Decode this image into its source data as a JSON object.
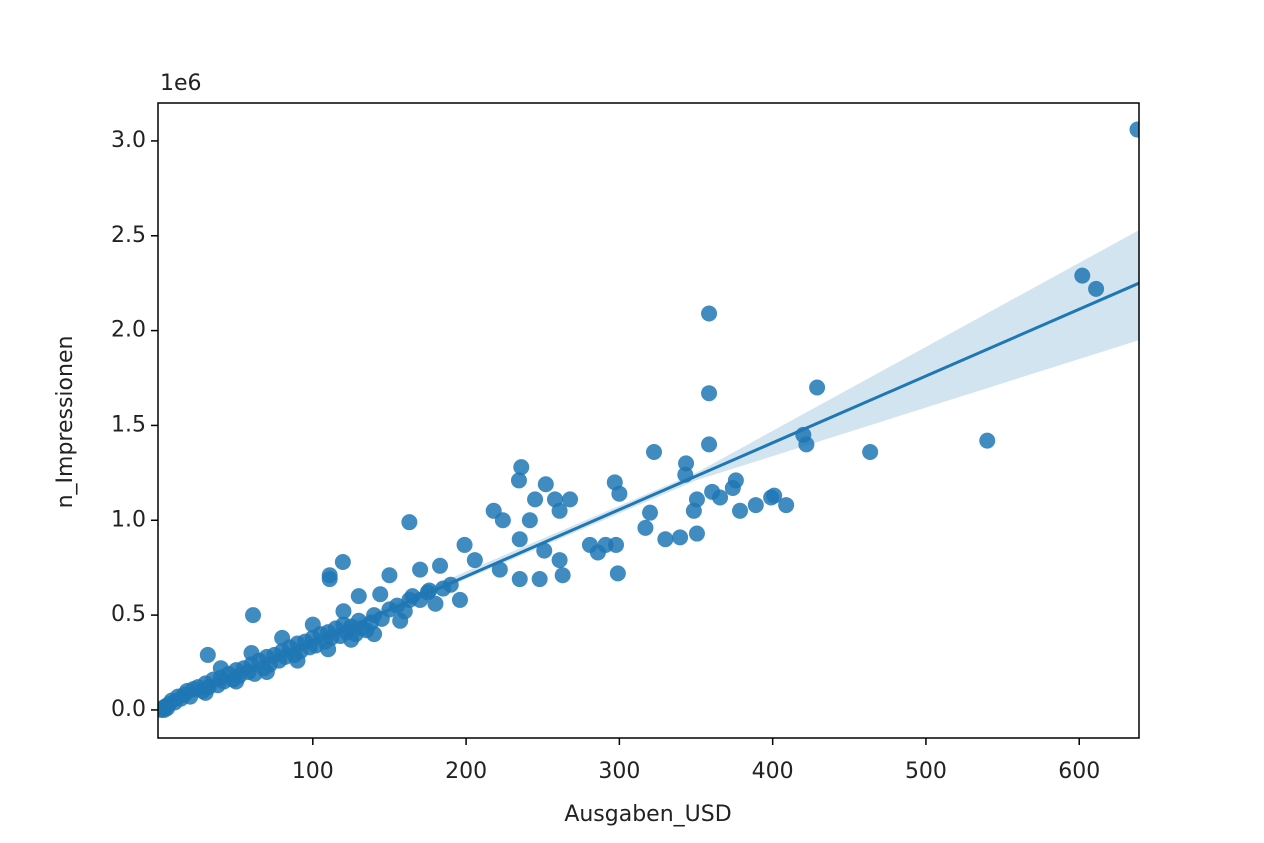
{
  "chart_data": {
    "type": "scatter",
    "x_label": "Ausgaben_USD",
    "y_label": "n_Impressionen",
    "y_offset_label": "1e6",
    "color": "#1f77b4",
    "xlim": [
      -1,
      639
    ],
    "ylim": [
      -0.148,
      3.2
    ],
    "xticks": [
      100,
      200,
      300,
      400,
      500,
      600
    ],
    "yticks": [
      {
        "value": 0,
        "label": "0.0"
      },
      {
        "value": 0.5,
        "label": "0.5"
      },
      {
        "value": 1,
        "label": "1.0"
      },
      {
        "value": 1.5,
        "label": "1.5"
      },
      {
        "value": 2,
        "label": "2.0"
      },
      {
        "value": 2.5,
        "label": "2.5"
      },
      {
        "value": 3,
        "label": "3.0"
      }
    ],
    "x": [
      1,
      2,
      3,
      4,
      5,
      6,
      8,
      10,
      12,
      14,
      16,
      18,
      20,
      22,
      25,
      28,
      30,
      30,
      32,
      35,
      38,
      40,
      40,
      42,
      45,
      48,
      50,
      50,
      52,
      55,
      58,
      60,
      60,
      62,
      65,
      68,
      70,
      70,
      72,
      75,
      78,
      80,
      80,
      82,
      85,
      88,
      90,
      90,
      92,
      95,
      98,
      100,
      100,
      102,
      105,
      108,
      110,
      110,
      112,
      115,
      118,
      120,
      120,
      122,
      125,
      125,
      128,
      130,
      130,
      132,
      135,
      138,
      140,
      140,
      145,
      150,
      155,
      160,
      165,
      170,
      175,
      180,
      185,
      190,
      31.5,
      61,
      638,
      602,
      611,
      358.5,
      358.5,
      358.5,
      429,
      420,
      422,
      463.6,
      540,
      322.6,
      163,
      236,
      234.5,
      252,
      297,
      300,
      343.5,
      343,
      376,
      360.5,
      374,
      378.7,
      389,
      399,
      408.8,
      401,
      350.6,
      365.7,
      348.6,
      330,
      339.6,
      350.6,
      317,
      320,
      299,
      280.8,
      286,
      291,
      297.8,
      218,
      224,
      235,
      241.6,
      245,
      258,
      267.8,
      261,
      251,
      261,
      235,
      222,
      248,
      263,
      199,
      205.7,
      183,
      170,
      176,
      196,
      163,
      157,
      144,
      150,
      111,
      119.6,
      111
    ],
    "y": [
      0.0,
      0.01,
      0.0,
      0.02,
      0.01,
      0.03,
      0.05,
      0.04,
      0.07,
      0.06,
      0.08,
      0.1,
      0.07,
      0.11,
      0.12,
      0.1,
      0.14,
      0.09,
      0.12,
      0.16,
      0.13,
      0.17,
      0.22,
      0.15,
      0.19,
      0.16,
      0.21,
      0.15,
      0.18,
      0.22,
      0.2,
      0.24,
      0.3,
      0.19,
      0.26,
      0.22,
      0.28,
      0.2,
      0.24,
      0.29,
      0.26,
      0.31,
      0.38,
      0.28,
      0.33,
      0.29,
      0.35,
      0.26,
      0.31,
      0.36,
      0.33,
      0.38,
      0.45,
      0.34,
      0.4,
      0.36,
      0.41,
      0.32,
      0.38,
      0.43,
      0.39,
      0.45,
      0.52,
      0.41,
      0.44,
      0.37,
      0.4,
      0.47,
      0.6,
      0.43,
      0.42,
      0.46,
      0.5,
      0.4,
      0.48,
      0.53,
      0.55,
      0.52,
      0.6,
      0.58,
      0.62,
      0.56,
      0.64,
      0.66,
      0.29,
      0.5,
      3.06,
      2.29,
      2.22,
      2.09,
      1.67,
      1.4,
      1.7,
      1.45,
      1.4,
      1.36,
      1.42,
      1.36,
      0.99,
      1.28,
      1.21,
      1.19,
      1.2,
      1.14,
      1.3,
      1.24,
      1.21,
      1.15,
      1.17,
      1.05,
      1.08,
      1.12,
      1.08,
      1.13,
      1.11,
      1.12,
      1.05,
      0.9,
      0.91,
      0.93,
      0.96,
      1.04,
      0.72,
      0.87,
      0.83,
      0.87,
      0.87,
      1.05,
      1.0,
      0.9,
      1.0,
      1.11,
      1.11,
      1.11,
      1.05,
      0.84,
      0.79,
      0.69,
      0.74,
      0.69,
      0.71,
      0.87,
      0.79,
      0.76,
      0.74,
      0.63,
      0.58,
      0.58,
      0.47,
      0.61,
      0.71,
      0.71,
      0.78,
      0.69
    ],
    "fit_x": [
      0,
      639
    ],
    "fit_y": [
      0.0,
      2.25
    ],
    "ci_x": [
      0,
      200,
      350,
      639
    ],
    "ci_upper": [
      0.02,
      0.73,
      1.25,
      2.53
    ],
    "ci_lower": [
      -0.02,
      0.69,
      1.21,
      1.95
    ]
  }
}
